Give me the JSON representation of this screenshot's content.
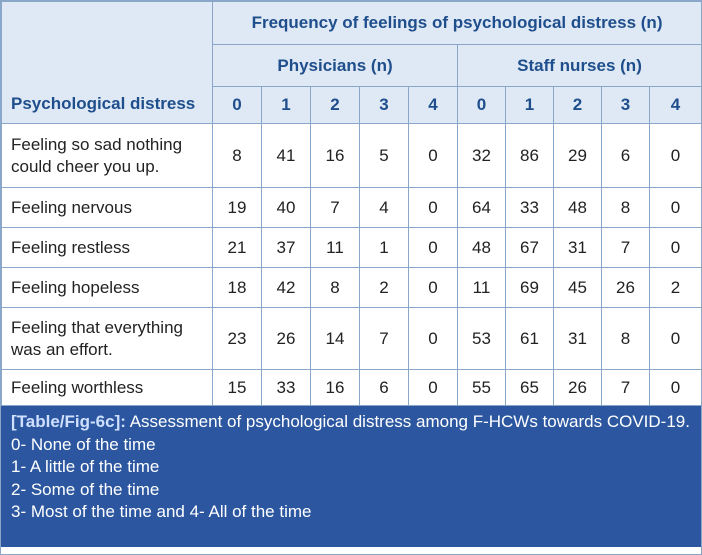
{
  "table": {
    "row_header": "Psychological distress",
    "header": "Frequency of feelings of psychological distress (n)",
    "groups": [
      "Physicians (n)",
      "Staff nurses (n)"
    ],
    "columns": [
      "0",
      "1",
      "2",
      "3",
      "4",
      "0",
      "1",
      "2",
      "3",
      "4"
    ],
    "rows": [
      {
        "label": "Feeling so sad nothing could cheer you up.",
        "values": [
          8,
          41,
          16,
          5,
          0,
          32,
          86,
          29,
          6,
          0
        ]
      },
      {
        "label": "Feeling nervous",
        "values": [
          19,
          40,
          7,
          4,
          0,
          64,
          33,
          48,
          8,
          0
        ]
      },
      {
        "label": "Feeling restless",
        "values": [
          21,
          37,
          11,
          1,
          0,
          48,
          67,
          31,
          7,
          0
        ]
      },
      {
        "label": "Feeling hopeless",
        "values": [
          18,
          42,
          8,
          2,
          0,
          11,
          69,
          45,
          26,
          2
        ]
      },
      {
        "label": "Feeling that everything was an effort.",
        "values": [
          23,
          26,
          14,
          7,
          0,
          53,
          61,
          31,
          8,
          0
        ]
      },
      {
        "label": "Feeling worthless",
        "values": [
          15,
          33,
          16,
          6,
          0,
          55,
          65,
          26,
          7,
          0
        ]
      }
    ]
  },
  "caption": {
    "ref": "[Table/Fig-6c]:",
    "text": "Assessment of psychological distress among F-HCWs towards COVID-19.",
    "notes": [
      "0- None of the time",
      "1- A little of the time",
      "2- Some of the time",
      "3- Most of the time and 4- All of the time"
    ]
  }
}
